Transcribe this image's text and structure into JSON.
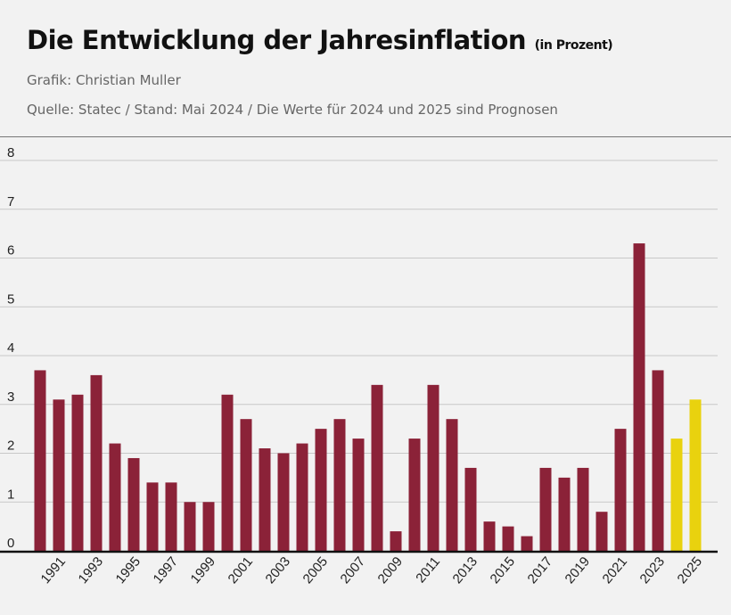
{
  "header": {
    "title": "Die Entwicklung der Jahresinflation",
    "title_unit": "(in Prozent)",
    "credit": "Grafik: Christian Muller",
    "source": "Quelle: Statec / Stand: Mai 2024 / Die Werte für 2024 und 2025 sind Prognosen"
  },
  "chart_data": {
    "type": "bar",
    "title": "Die Entwicklung der Jahresinflation (in Prozent)",
    "categories": [
      "1990",
      "1991",
      "1992",
      "1993",
      "1994",
      "1995",
      "1996",
      "1997",
      "1998",
      "1999",
      "2000",
      "2001",
      "2002",
      "2003",
      "2004",
      "2005",
      "2006",
      "2007",
      "2008",
      "2009",
      "2010",
      "2011",
      "2012",
      "2013",
      "2014",
      "2015",
      "2016",
      "2017",
      "2018",
      "2019",
      "2020",
      "2021",
      "2022",
      "2023",
      "2024",
      "2025"
    ],
    "values": [
      3.7,
      3.1,
      3.2,
      3.6,
      2.2,
      1.9,
      1.4,
      1.4,
      1.0,
      1.0,
      3.2,
      2.7,
      2.1,
      2.0,
      2.2,
      2.5,
      2.7,
      2.3,
      3.4,
      0.4,
      2.3,
      3.4,
      2.7,
      1.7,
      0.6,
      0.5,
      0.3,
      1.7,
      1.5,
      1.7,
      0.8,
      2.5,
      6.3,
      3.7,
      2.3,
      3.1
    ],
    "forecast": [
      false,
      false,
      false,
      false,
      false,
      false,
      false,
      false,
      false,
      false,
      false,
      false,
      false,
      false,
      false,
      false,
      false,
      false,
      false,
      false,
      false,
      false,
      false,
      false,
      false,
      false,
      false,
      false,
      false,
      false,
      false,
      false,
      false,
      false,
      true,
      true
    ],
    "x_tick_labels": [
      "1991",
      "1993",
      "1995",
      "1997",
      "1999",
      "2001",
      "2003",
      "2005",
      "2007",
      "2009",
      "2011",
      "2013",
      "2015",
      "2017",
      "2019",
      "2021",
      "2023",
      "2025"
    ],
    "y_ticks": [
      0,
      1,
      2,
      3,
      4,
      5,
      6,
      7,
      8
    ],
    "ylim": [
      0,
      8
    ],
    "grid": true,
    "colors": {
      "actual": "#8b2238",
      "forecast": "#e9d20e"
    },
    "xlabel": "",
    "ylabel": ""
  }
}
